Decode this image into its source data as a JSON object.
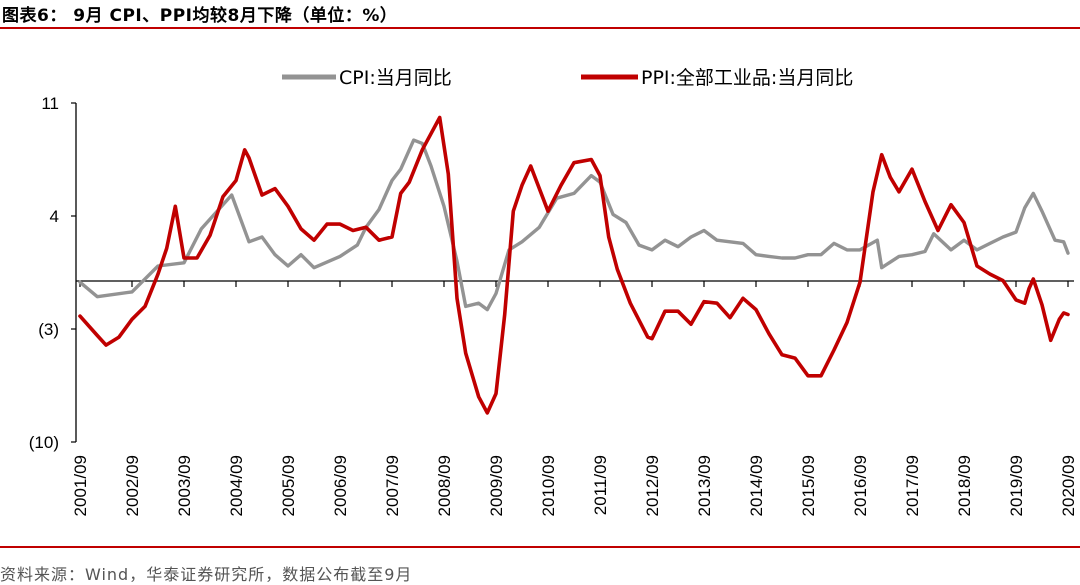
{
  "title": "图表6：  9月 CPI、PPI均较8月下降（单位：%）",
  "source": "资料来源：Wind，华泰证券研究所，数据公布截至9月",
  "colors": {
    "cpi": "#939393",
    "ppi": "#c00000",
    "rule": "#c00000"
  },
  "chart_data": {
    "type": "line",
    "title": "图表6：  9月 CPI、PPI均较8月下降（单位：%）",
    "ylim": [
      -10,
      11
    ],
    "yticks": [
      11,
      4,
      -3,
      -10
    ],
    "ytick_labels": [
      "11",
      "4",
      "(3)",
      "(10)"
    ],
    "xlim": [
      "2001/09",
      "2020/09"
    ],
    "xtick_labels": [
      "2001/09",
      "2002/09",
      "2003/09",
      "2004/09",
      "2005/09",
      "2006/09",
      "2007/09",
      "2008/09",
      "2009/09",
      "2010/09",
      "2011/09",
      "2012/09",
      "2013/09",
      "2014/09",
      "2015/09",
      "2016/09",
      "2017/09",
      "2018/09",
      "2019/09",
      "2020/09"
    ],
    "legend_position": "top",
    "grid": false,
    "series": [
      {
        "name": "CPI:当月同比",
        "key": "cpi",
        "points": [
          [
            "2001/09",
            -0.1
          ],
          [
            "2002/01",
            -1.0
          ],
          [
            "2002/09",
            -0.7
          ],
          [
            "2003/03",
            0.9
          ],
          [
            "2003/09",
            1.1
          ],
          [
            "2004/01",
            3.2
          ],
          [
            "2004/08",
            5.3
          ],
          [
            "2004/12",
            2.4
          ],
          [
            "2005/03",
            2.7
          ],
          [
            "2005/06",
            1.6
          ],
          [
            "2005/09",
            0.9
          ],
          [
            "2005/12",
            1.6
          ],
          [
            "2006/03",
            0.8
          ],
          [
            "2006/09",
            1.5
          ],
          [
            "2007/01",
            2.2
          ],
          [
            "2007/03",
            3.3
          ],
          [
            "2007/06",
            4.4
          ],
          [
            "2007/09",
            6.2
          ],
          [
            "2007/11",
            6.9
          ],
          [
            "2008/02",
            8.7
          ],
          [
            "2008/04",
            8.5
          ],
          [
            "2008/06",
            7.1
          ],
          [
            "2008/09",
            4.6
          ],
          [
            "2008/12",
            1.2
          ],
          [
            "2009/02",
            -1.6
          ],
          [
            "2009/05",
            -1.4
          ],
          [
            "2009/07",
            -1.8
          ],
          [
            "2009/09",
            -0.8
          ],
          [
            "2009/12",
            1.9
          ],
          [
            "2010/03",
            2.4
          ],
          [
            "2010/07",
            3.3
          ],
          [
            "2010/11",
            5.1
          ],
          [
            "2011/03",
            5.4
          ],
          [
            "2011/07",
            6.5
          ],
          [
            "2011/09",
            6.1
          ],
          [
            "2011/12",
            4.1
          ],
          [
            "2012/03",
            3.6
          ],
          [
            "2012/06",
            2.2
          ],
          [
            "2012/09",
            1.9
          ],
          [
            "2012/12",
            2.5
          ],
          [
            "2013/03",
            2.1
          ],
          [
            "2013/06",
            2.7
          ],
          [
            "2013/09",
            3.1
          ],
          [
            "2013/12",
            2.5
          ],
          [
            "2014/03",
            2.4
          ],
          [
            "2014/06",
            2.3
          ],
          [
            "2014/09",
            1.6
          ],
          [
            "2014/12",
            1.5
          ],
          [
            "2015/03",
            1.4
          ],
          [
            "2015/06",
            1.4
          ],
          [
            "2015/09",
            1.6
          ],
          [
            "2015/12",
            1.6
          ],
          [
            "2016/03",
            2.3
          ],
          [
            "2016/06",
            1.9
          ],
          [
            "2016/09",
            1.9
          ],
          [
            "2017/01",
            2.5
          ],
          [
            "2017/02",
            0.8
          ],
          [
            "2017/06",
            1.5
          ],
          [
            "2017/09",
            1.6
          ],
          [
            "2017/12",
            1.8
          ],
          [
            "2018/02",
            2.9
          ],
          [
            "2018/06",
            1.9
          ],
          [
            "2018/09",
            2.5
          ],
          [
            "2018/12",
            1.9
          ],
          [
            "2019/03",
            2.3
          ],
          [
            "2019/06",
            2.7
          ],
          [
            "2019/09",
            3.0
          ],
          [
            "2019/11",
            4.5
          ],
          [
            "2020/01",
            5.4
          ],
          [
            "2020/03",
            4.3
          ],
          [
            "2020/06",
            2.5
          ],
          [
            "2020/08",
            2.4
          ],
          [
            "2020/09",
            1.7
          ]
        ]
      },
      {
        "name": "PPI:全部工业品:当月同比",
        "key": "ppi",
        "points": [
          [
            "2001/09",
            -2.2
          ],
          [
            "2002/01",
            -3.4
          ],
          [
            "2002/03",
            -4.0
          ],
          [
            "2002/06",
            -3.5
          ],
          [
            "2002/09",
            -2.4
          ],
          [
            "2002/12",
            -1.6
          ],
          [
            "2003/03",
            0.4
          ],
          [
            "2003/05",
            2.0
          ],
          [
            "2003/07",
            4.6
          ],
          [
            "2003/09",
            1.4
          ],
          [
            "2003/12",
            1.4
          ],
          [
            "2004/03",
            2.8
          ],
          [
            "2004/06",
            5.2
          ],
          [
            "2004/09",
            6.2
          ],
          [
            "2004/11",
            8.1
          ],
          [
            "2004/12",
            7.6
          ],
          [
            "2005/03",
            5.3
          ],
          [
            "2005/06",
            5.7
          ],
          [
            "2005/09",
            4.6
          ],
          [
            "2005/12",
            3.2
          ],
          [
            "2006/03",
            2.5
          ],
          [
            "2006/06",
            3.5
          ],
          [
            "2006/09",
            3.5
          ],
          [
            "2006/12",
            3.1
          ],
          [
            "2007/03",
            3.3
          ],
          [
            "2007/06",
            2.5
          ],
          [
            "2007/09",
            2.7
          ],
          [
            "2007/11",
            5.4
          ],
          [
            "2008/01",
            6.1
          ],
          [
            "2008/04",
            8.1
          ],
          [
            "2008/08",
            10.1
          ],
          [
            "2008/10",
            6.6
          ],
          [
            "2008/12",
            -1.1
          ],
          [
            "2009/02",
            -4.5
          ],
          [
            "2009/05",
            -7.2
          ],
          [
            "2009/07",
            -8.2
          ],
          [
            "2009/09",
            -7.0
          ],
          [
            "2009/11",
            -2.1
          ],
          [
            "2010/01",
            4.3
          ],
          [
            "2010/03",
            5.9
          ],
          [
            "2010/05",
            7.1
          ],
          [
            "2010/09",
            4.3
          ],
          [
            "2010/12",
            5.9
          ],
          [
            "2011/03",
            7.3
          ],
          [
            "2011/07",
            7.5
          ],
          [
            "2011/09",
            6.5
          ],
          [
            "2011/11",
            2.7
          ],
          [
            "2012/01",
            0.7
          ],
          [
            "2012/04",
            -1.4
          ],
          [
            "2012/08",
            -3.5
          ],
          [
            "2012/09",
            -3.6
          ],
          [
            "2012/12",
            -1.9
          ],
          [
            "2013/03",
            -1.9
          ],
          [
            "2013/06",
            -2.7
          ],
          [
            "2013/09",
            -1.3
          ],
          [
            "2013/12",
            -1.4
          ],
          [
            "2014/03",
            -2.3
          ],
          [
            "2014/06",
            -1.1
          ],
          [
            "2014/09",
            -1.8
          ],
          [
            "2014/12",
            -3.3
          ],
          [
            "2015/03",
            -4.6
          ],
          [
            "2015/06",
            -4.8
          ],
          [
            "2015/09",
            -5.9
          ],
          [
            "2015/12",
            -5.9
          ],
          [
            "2016/03",
            -4.3
          ],
          [
            "2016/06",
            -2.6
          ],
          [
            "2016/09",
            -0.1
          ],
          [
            "2016/12",
            5.5
          ],
          [
            "2017/02",
            7.8
          ],
          [
            "2017/04",
            6.4
          ],
          [
            "2017/06",
            5.5
          ],
          [
            "2017/09",
            6.9
          ],
          [
            "2017/12",
            4.9
          ],
          [
            "2018/03",
            3.1
          ],
          [
            "2018/06",
            4.7
          ],
          [
            "2018/09",
            3.6
          ],
          [
            "2018/12",
            0.9
          ],
          [
            "2019/03",
            0.4
          ],
          [
            "2019/06",
            0.0
          ],
          [
            "2019/09",
            -1.2
          ],
          [
            "2019/11",
            -1.4
          ],
          [
            "2019/12",
            -0.5
          ],
          [
            "2020/01",
            0.1
          ],
          [
            "2020/03",
            -1.5
          ],
          [
            "2020/05",
            -3.7
          ],
          [
            "2020/07",
            -2.4
          ],
          [
            "2020/08",
            -2.0
          ],
          [
            "2020/09",
            -2.1
          ]
        ]
      }
    ]
  }
}
